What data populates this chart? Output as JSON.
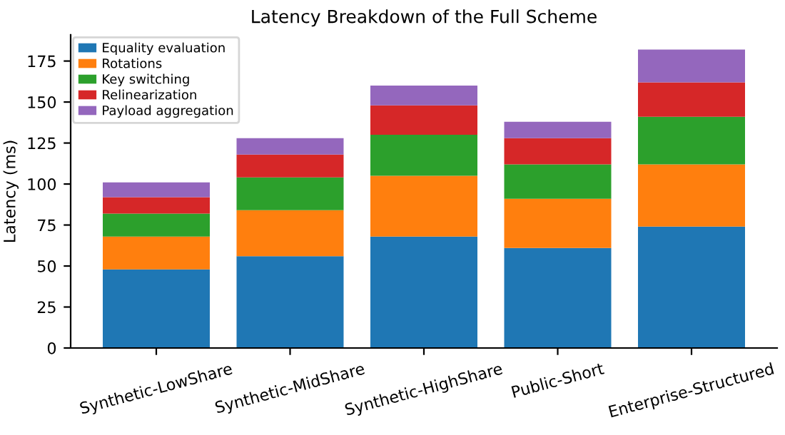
{
  "chart_data": {
    "type": "bar",
    "stacked": true,
    "title": "Latency Breakdown of the Full Scheme",
    "ylabel": "Latency (ms)",
    "categories": [
      "Synthetic-LowShare",
      "Synthetic-MidShare",
      "Synthetic-HighShare",
      "Public-Short",
      "Enterprise-Structured"
    ],
    "series": [
      {
        "name": "Equality evaluation",
        "color": "#1f77b4",
        "values": [
          48,
          56,
          68,
          61,
          74
        ]
      },
      {
        "name": "Rotations",
        "color": "#ff7f0e",
        "values": [
          20,
          28,
          37,
          30,
          38
        ]
      },
      {
        "name": "Key switching",
        "color": "#2ca02c",
        "values": [
          14,
          20,
          25,
          21,
          29
        ]
      },
      {
        "name": "Relinearization",
        "color": "#d62728",
        "values": [
          10,
          14,
          18,
          16,
          21
        ]
      },
      {
        "name": "Payload aggregation",
        "color": "#9467bd",
        "values": [
          9,
          10,
          12,
          10,
          20
        ]
      }
    ],
    "ylim": [
      0,
      191
    ],
    "yticks": [
      0,
      25,
      50,
      75,
      100,
      125,
      150,
      175
    ],
    "grid": false,
    "legend": "top left"
  }
}
